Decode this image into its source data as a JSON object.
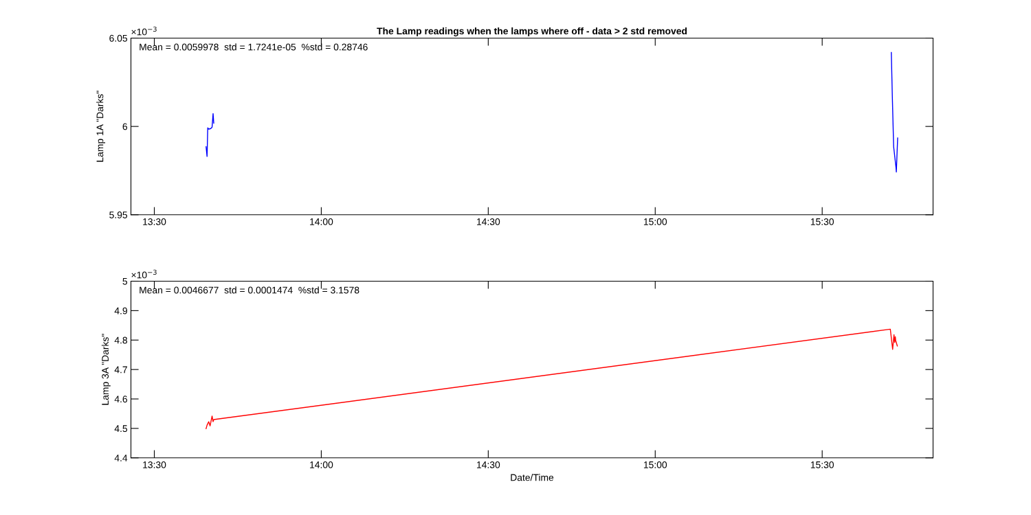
{
  "chart_data": [
    {
      "type": "line",
      "title": "The Lamp readings when the lamps where off - data > 2 std removed",
      "ylabel": "Lamp 1A \"Darks\"",
      "annotations": [
        "×10$^{−3}$",
        "Mean = 0.0059978  std = 1.7241e-05  %std = 0.28746"
      ],
      "x": [
        13.655,
        13.658,
        13.66,
        13.663,
        13.669,
        13.673,
        13.676,
        13.678,
        14.7,
        15.707,
        15.71,
        15.714,
        15.721,
        15.722,
        15.726
      ],
      "series": [
        {
          "color": "#0000ff",
          "values": [
            5.9885,
            5.983,
            5.9992,
            5.9985,
            5.9988,
            5.9996,
            6.0073,
            6.0019,
            null,
            6.0419,
            6.0173,
            5.9885,
            5.9769,
            5.9742,
            5.9935
          ]
        }
      ],
      "xlim": [
        13.43,
        15.832
      ],
      "xticks": [
        {
          "value": 13.5,
          "label": "13:30"
        },
        {
          "value": 14,
          "label": "14:00"
        },
        {
          "value": 14.5,
          "label": "14:30"
        },
        {
          "value": 15,
          "label": "15:00"
        },
        {
          "value": 15.5,
          "label": "15:30"
        }
      ],
      "ylim": [
        5.95,
        6.05
      ],
      "yticks": [
        5.95,
        6,
        6.05
      ],
      "grid": false,
      "legend": false,
      "marker": "none",
      "line_style": "solid"
    },
    {
      "type": "line",
      "xlabel": "Date/Time",
      "ylabel": "Lamp 3A \"Darks\"",
      "annotations": [
        "×10$^{−3}$",
        "Mean = 0.0046677  std = 0.0001474  %std = 3.1578"
      ],
      "x": [
        13.655,
        13.658,
        13.663,
        13.667,
        13.673,
        13.676,
        13.678,
        15.704,
        15.711,
        15.715,
        15.717,
        15.719,
        15.72,
        15.725
      ],
      "series": [
        {
          "color": "#ff0000",
          "values": [
            4.4992,
            4.511,
            4.5228,
            4.5086,
            4.5417,
            4.5228,
            4.5299,
            4.837,
            4.7685,
            4.818,
            4.792,
            4.811,
            4.799,
            4.78
          ]
        }
      ],
      "xlim": [
        13.43,
        15.832
      ],
      "xticks": [
        {
          "value": 13.5,
          "label": "13:30"
        },
        {
          "value": 14,
          "label": "14:00"
        },
        {
          "value": 14.5,
          "label": "14:30"
        },
        {
          "value": 15,
          "label": "15:00"
        },
        {
          "value": 15.5,
          "label": "15:30"
        }
      ],
      "ylim": [
        4.4,
        5
      ],
      "yticks": [
        4.4,
        4.5,
        4.6,
        4.7,
        4.8,
        4.9,
        5
      ],
      "grid": false,
      "legend": false,
      "marker": "none",
      "line_style": "solid"
    }
  ]
}
